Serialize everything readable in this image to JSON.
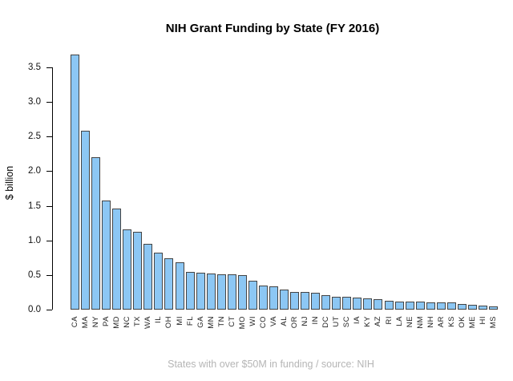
{
  "title": "NIH Grant Funding by State (FY 2016)",
  "caption": "States with over $50M in funding / source: NIH",
  "chart_data": {
    "type": "bar",
    "title": "NIH Grant Funding by State (FY 2016)",
    "xlabel": "",
    "ylabel": "$ billion",
    "ylim": [
      0,
      3.5
    ],
    "yticks": [
      0.0,
      0.5,
      1.0,
      1.5,
      2.0,
      2.5,
      3.0,
      3.5
    ],
    "ytick_labels": [
      "0.0",
      "0.5",
      "1.0",
      "1.5",
      "2.0",
      "2.5",
      "3.0",
      "3.5"
    ],
    "grid": false,
    "legend": "none",
    "caption": "States with over $50M in funding / source: NIH",
    "bar_fill_color": "#8CC7F4",
    "bar_border_color": "#444444",
    "caption_color": "#b5b5b5",
    "categories": [
      "CA",
      "MA",
      "NY",
      "PA",
      "MD",
      "NC",
      "TX",
      "WA",
      "IL",
      "OH",
      "MI",
      "FL",
      "GA",
      "MN",
      "TN",
      "CT",
      "MO",
      "WI",
      "CO",
      "VA",
      "AL",
      "OR",
      "NJ",
      "IN",
      "DC",
      "UT",
      "SC",
      "IA",
      "KY",
      "AZ",
      "RI",
      "LA",
      "NE",
      "NM",
      "NH",
      "AR",
      "KS",
      "OK",
      "ME",
      "HI",
      "MS"
    ],
    "values": [
      3.68,
      2.58,
      2.2,
      1.58,
      1.46,
      1.16,
      1.12,
      0.95,
      0.82,
      0.74,
      0.68,
      0.54,
      0.53,
      0.52,
      0.51,
      0.51,
      0.5,
      0.42,
      0.35,
      0.34,
      0.29,
      0.26,
      0.25,
      0.24,
      0.21,
      0.19,
      0.18,
      0.17,
      0.16,
      0.15,
      0.13,
      0.12,
      0.12,
      0.12,
      0.11,
      0.1,
      0.1,
      0.08,
      0.07,
      0.06,
      0.05
    ]
  }
}
